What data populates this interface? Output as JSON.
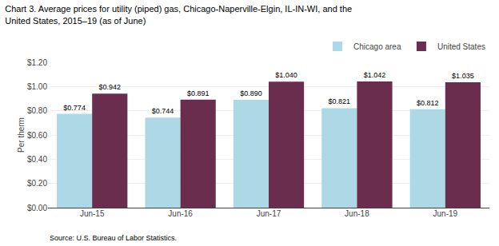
{
  "chart_data": {
    "type": "bar",
    "title": "Chart 3. Average prices for utility (piped) gas, Chicago-Naperville-Elgin, IL-IN-WI, and the\nUnited States, 2015–19 (as of June)",
    "ylabel": "Per therm",
    "annotations": [
      "Source: U.S. Bureau of Labor Statistics."
    ],
    "categories": [
      "Jun-15",
      "Jun-16",
      "Jun-17",
      "Jun-18",
      "Jun-19"
    ],
    "series": [
      {
        "name": "Chicago area",
        "color": "#ADD8E6",
        "values": [
          0.774,
          0.744,
          0.89,
          0.821,
          0.812
        ],
        "value_labels": [
          "$0.774",
          "$0.744",
          "$0.890",
          "$0.821",
          "$0.812"
        ]
      },
      {
        "name": "United States",
        "color": "#6B2D4E",
        "values": [
          0.942,
          0.891,
          1.04,
          1.042,
          1.035
        ],
        "value_labels": [
          "$0.942",
          "$0.891",
          "$1.040",
          "$1.042",
          "$1.035"
        ]
      }
    ],
    "ylim": [
      0,
      1.2
    ],
    "yticks": [
      {
        "value": 0.0,
        "label": "$0.00"
      },
      {
        "value": 0.2,
        "label": "$0.20"
      },
      {
        "value": 0.4,
        "label": "$0.40"
      },
      {
        "value": 0.6,
        "label": "$0.60"
      },
      {
        "value": 0.8,
        "label": "$0.80"
      },
      {
        "value": 1.0,
        "label": "$1.00"
      },
      {
        "value": 1.2,
        "label": "$1.20"
      }
    ],
    "grid": true,
    "legend": "upper right",
    "data_labels": true
  }
}
